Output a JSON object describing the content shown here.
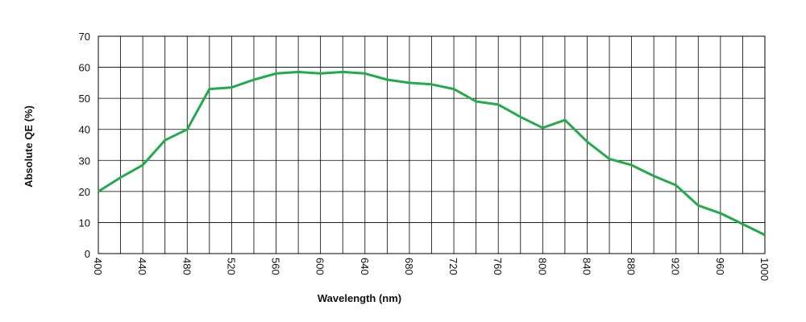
{
  "chart_data": {
    "type": "line",
    "title": "",
    "xlabel": "Wavelength (nm)",
    "ylabel": "Absolute QE (%)",
    "xlim": [
      400,
      1000
    ],
    "ylim": [
      0,
      70
    ],
    "xticks": [
      400,
      440,
      480,
      520,
      560,
      600,
      640,
      680,
      720,
      760,
      800,
      840,
      880,
      920,
      960,
      1000
    ],
    "yticks": [
      0,
      10,
      20,
      30,
      40,
      50,
      60,
      70
    ],
    "grid": true,
    "line_color": "#22aa4b",
    "series": [
      {
        "x": [
          400,
          420,
          440,
          460,
          480,
          500,
          520,
          540,
          560,
          580,
          600,
          620,
          640,
          660,
          680,
          700,
          720,
          740,
          760,
          780,
          800,
          820,
          840,
          860,
          880,
          900,
          920,
          940,
          960,
          980,
          1000
        ],
        "values": [
          20,
          24.5,
          28.5,
          36.5,
          40,
          53,
          53.5,
          56,
          58,
          58.5,
          58,
          58.5,
          58,
          56,
          55,
          54.5,
          53,
          49,
          48,
          44,
          40.5,
          43,
          36,
          30.5,
          28.5,
          25,
          22,
          15.5,
          13,
          9.5,
          6
        ]
      }
    ]
  }
}
